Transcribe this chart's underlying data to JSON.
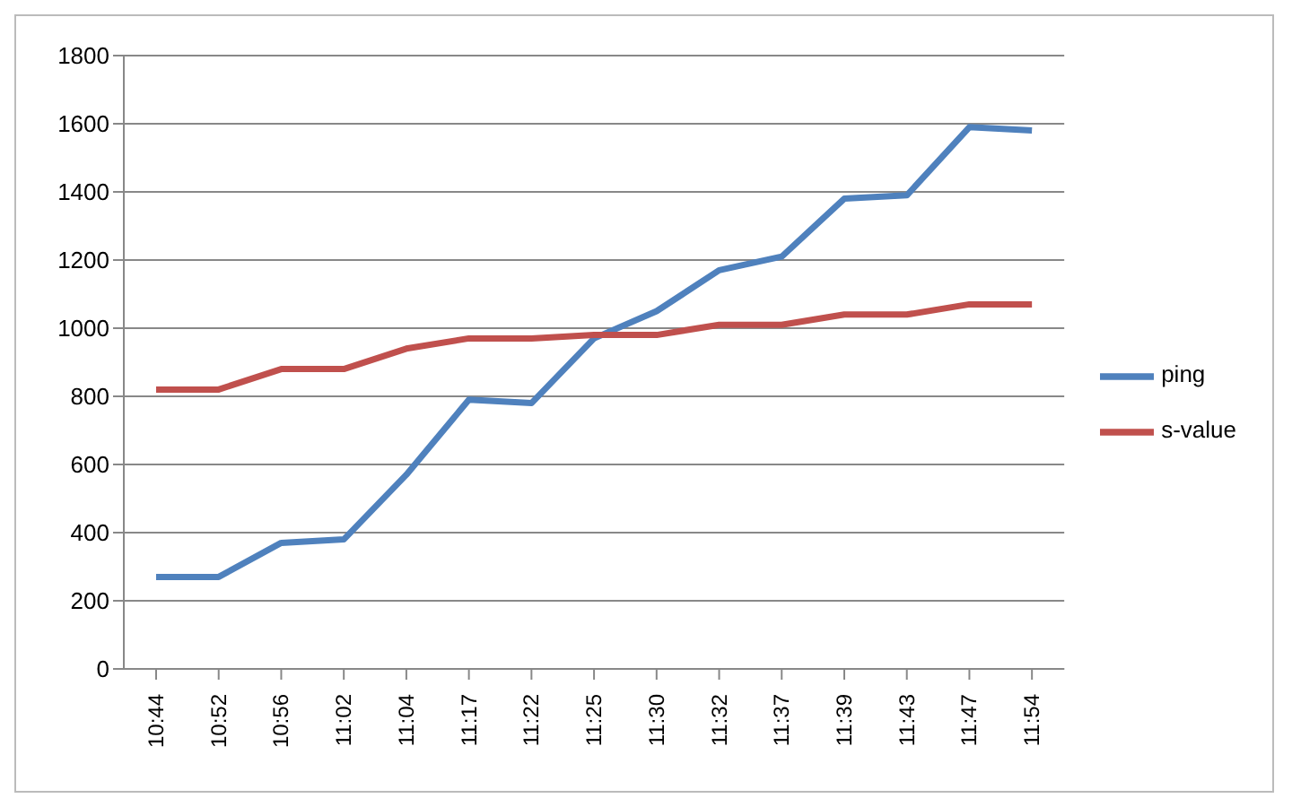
{
  "chart_data": {
    "type": "line",
    "categories": [
      "10:44",
      "10:52",
      "10:56",
      "11:02",
      "11:04",
      "11:17",
      "11:22",
      "11:25",
      "11:30",
      "11:32",
      "11:37",
      "11:39",
      "11:43",
      "11:47",
      "11:54"
    ],
    "series": [
      {
        "name": "ping",
        "color": "#4f81bd",
        "values": [
          270,
          270,
          370,
          380,
          570,
          790,
          780,
          970,
          1050,
          1170,
          1210,
          1380,
          1390,
          1590,
          1580
        ]
      },
      {
        "name": "s-value",
        "color": "#c0504d",
        "values": [
          820,
          820,
          880,
          880,
          940,
          970,
          970,
          980,
          980,
          1010,
          1010,
          1040,
          1040,
          1070,
          1070
        ]
      }
    ],
    "ylim": [
      0,
      1800
    ],
    "yticks": [
      0,
      200,
      400,
      600,
      800,
      1000,
      1200,
      1400,
      1600,
      1800
    ],
    "grid": "y",
    "legend": "right",
    "marker": "none"
  }
}
